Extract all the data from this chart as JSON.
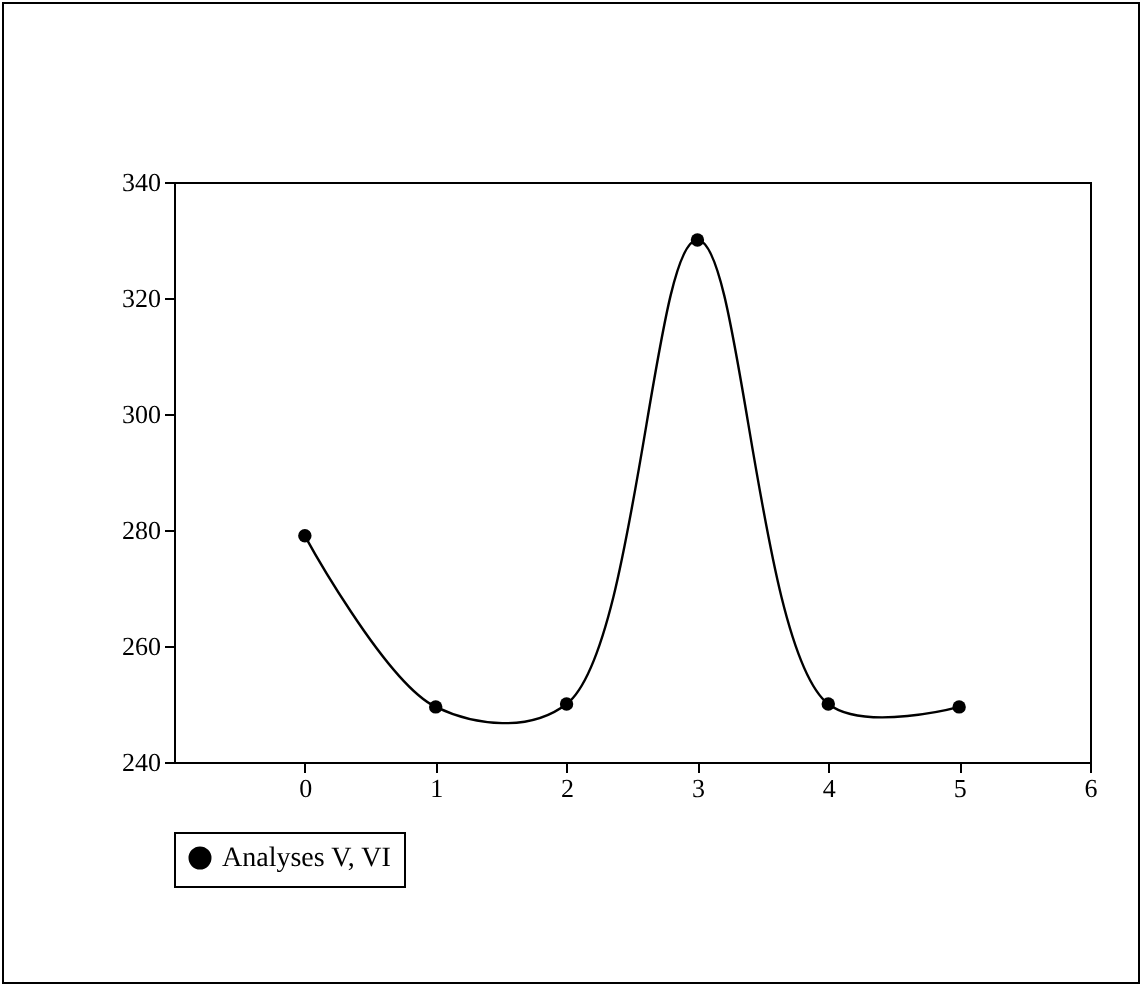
{
  "chart_data": {
    "type": "line",
    "x": [
      0,
      1,
      2,
      3,
      4,
      5
    ],
    "series": [
      {
        "name": "Analyses V, VI",
        "color": "#000000",
        "values": [
          279,
          249.5,
          250,
          330,
          250,
          249.5
        ]
      }
    ],
    "xlim": [
      -1,
      6
    ],
    "xticks": [
      0,
      1,
      2,
      3,
      4,
      5,
      6
    ],
    "ylim": [
      240,
      340
    ],
    "yticks": [
      240,
      260,
      280,
      300,
      320,
      340
    ],
    "grid": false,
    "legend": "bottom",
    "marker": "circle",
    "line_style": "solid"
  }
}
